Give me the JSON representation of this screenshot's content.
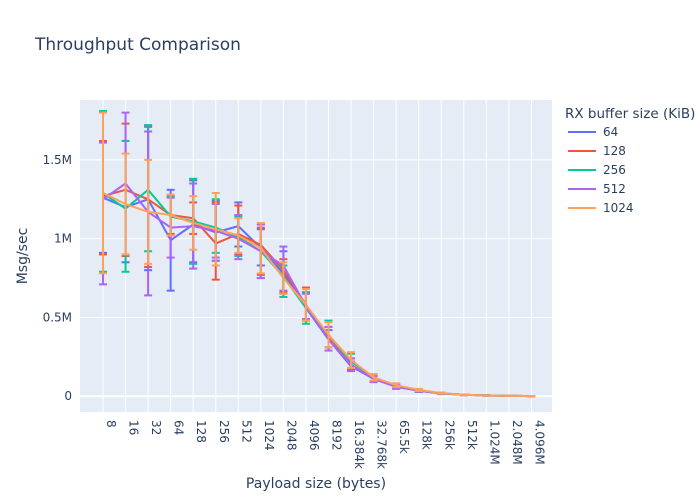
{
  "chart_data": {
    "type": "line",
    "title": "Throughput Comparison",
    "xlabel": "Payload size (bytes)",
    "ylabel": "Msg/sec",
    "legend_title": "RX buffer size (KiB)",
    "legend_position": "right",
    "grid": true,
    "ylim": [
      -100000,
      1880000
    ],
    "y_ticks": [
      0,
      500000,
      1000000,
      1500000
    ],
    "y_tick_labels": [
      "0",
      "0.5M",
      "1M",
      "1.5M"
    ],
    "categories": [
      "8",
      "16",
      "32",
      "64",
      "128",
      "256",
      "512",
      "1024",
      "2048",
      "4096",
      "8192",
      "16.384k",
      "32.768k",
      "65.5k",
      "128k",
      "256k",
      "512k",
      "1.024M",
      "2.048M",
      "4.096M"
    ],
    "series": [
      {
        "name": "64",
        "color": "#636efa",
        "values": [
          1260000,
          1200000,
          1250000,
          990000,
          1090000,
          1040000,
          1080000,
          940000,
          780000,
          560000,
          360000,
          190000,
          110000,
          60000,
          35000,
          18000,
          9000,
          5000,
          2500,
          1200
        ],
        "err_plus": [
          350000,
          420000,
          460000,
          320000,
          280000,
          200000,
          150000,
          120000,
          140000,
          100000,
          60000,
          30000,
          20000,
          12000,
          7000,
          4000,
          2000,
          1000,
          500,
          300
        ],
        "err_minus": [
          350000,
          350000,
          450000,
          320000,
          240000,
          180000,
          130000,
          110000,
          130000,
          80000,
          50000,
          25000,
          20000,
          12000,
          7000,
          4000,
          2000,
          1000,
          500,
          300
        ]
      },
      {
        "name": "128",
        "color": "#ef553b",
        "values": [
          1270000,
          1310000,
          1250000,
          1150000,
          1130000,
          970000,
          1030000,
          960000,
          800000,
          580000,
          370000,
          200000,
          110000,
          60000,
          35000,
          18000,
          9000,
          5000,
          2500,
          1200
        ],
        "err_plus": [
          350000,
          420000,
          470000,
          120000,
          100000,
          260000,
          180000,
          110000,
          70000,
          110000,
          70000,
          40000,
          20000,
          12000,
          7000,
          4000,
          2000,
          1000,
          500,
          300
        ],
        "err_minus": [
          370000,
          420000,
          430000,
          120000,
          100000,
          230000,
          130000,
          190000,
          140000,
          100000,
          60000,
          30000,
          20000,
          12000,
          7000,
          4000,
          2000,
          1000,
          500,
          300
        ]
      },
      {
        "name": "256",
        "color": "#00cc96",
        "values": [
          1290000,
          1190000,
          1310000,
          1140000,
          1110000,
          1070000,
          1010000,
          920000,
          760000,
          560000,
          390000,
          220000,
          120000,
          65000,
          35000,
          18000,
          9000,
          5000,
          2500,
          1200
        ],
        "err_plus": [
          520000,
          430000,
          410000,
          130000,
          270000,
          180000,
          130000,
          170000,
          70000,
          100000,
          90000,
          50000,
          20000,
          12000,
          7000,
          4000,
          2000,
          1000,
          500,
          300
        ],
        "err_minus": [
          500000,
          400000,
          390000,
          120000,
          270000,
          160000,
          120000,
          170000,
          130000,
          100000,
          80000,
          40000,
          20000,
          12000,
          7000,
          4000,
          2000,
          1000,
          500,
          300
        ]
      },
      {
        "name": "512",
        "color": "#ab63fa",
        "values": [
          1250000,
          1350000,
          1170000,
          1070000,
          1080000,
          1050000,
          1000000,
          920000,
          830000,
          570000,
          360000,
          200000,
          110000,
          60000,
          35000,
          18000,
          9000,
          5000,
          2500,
          1200
        ],
        "err_plus": [
          360000,
          450000,
          510000,
          190000,
          270000,
          170000,
          150000,
          170000,
          120000,
          80000,
          80000,
          40000,
          20000,
          12000,
          7000,
          4000,
          2000,
          1000,
          500,
          300
        ],
        "err_minus": [
          540000,
          450000,
          530000,
          190000,
          270000,
          170000,
          130000,
          170000,
          160000,
          80000,
          70000,
          40000,
          20000,
          12000,
          7000,
          4000,
          2000,
          1000,
          500,
          300
        ]
      },
      {
        "name": "1024",
        "color": "#ffa15a",
        "values": [
          1290000,
          1220000,
          1170000,
          1150000,
          1100000,
          1060000,
          1020000,
          940000,
          750000,
          580000,
          390000,
          230000,
          120000,
          70000,
          40000,
          20000,
          9000,
          5000,
          2500,
          1200
        ],
        "err_plus": [
          510000,
          320000,
          330000,
          130000,
          170000,
          230000,
          110000,
          160000,
          100000,
          100000,
          80000,
          50000,
          20000,
          12000,
          7000,
          4000,
          2000,
          1000,
          500,
          300
        ],
        "err_minus": [
          510000,
          320000,
          330000,
          130000,
          170000,
          230000,
          110000,
          160000,
          100000,
          100000,
          80000,
          50000,
          20000,
          12000,
          7000,
          4000,
          2000,
          1000,
          500,
          300
        ]
      }
    ]
  }
}
